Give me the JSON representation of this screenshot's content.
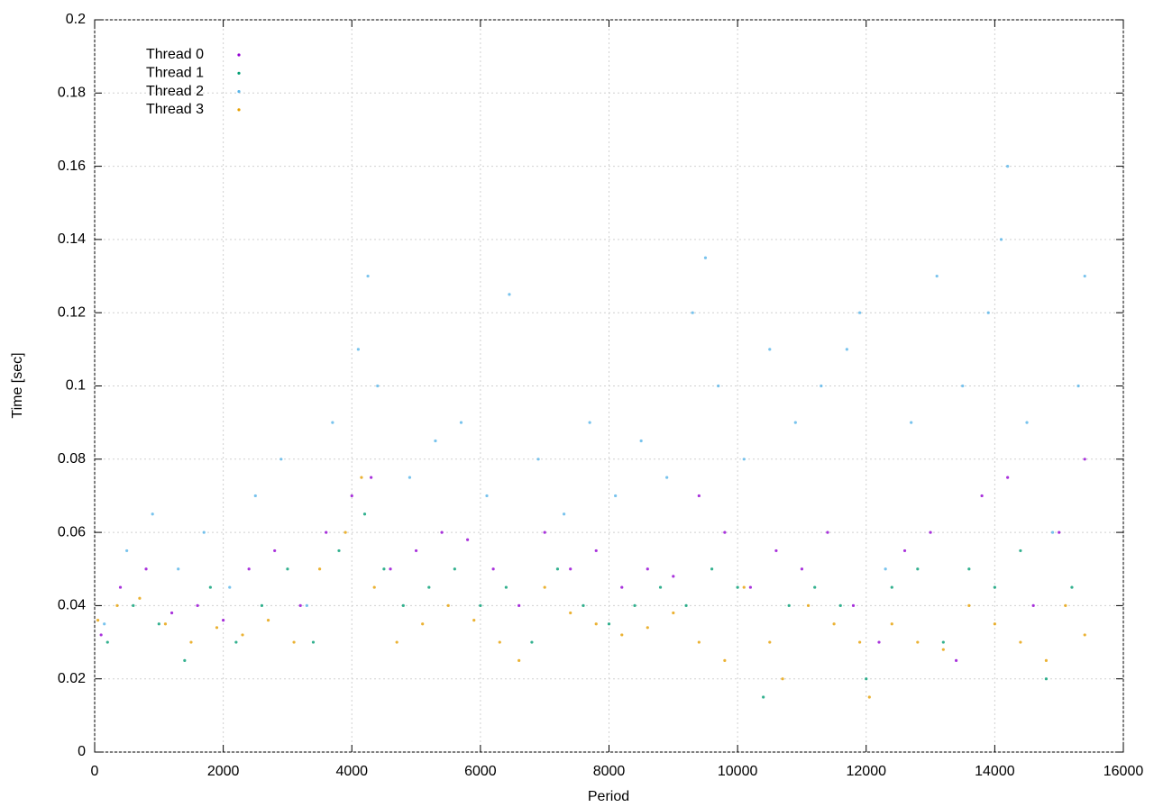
{
  "chart_data": {
    "type": "scatter",
    "xlabel": "Period",
    "ylabel": "Time [sec]",
    "xlim": [
      0,
      16000
    ],
    "ylim": [
      0,
      0.2
    ],
    "xticks": [
      0,
      2000,
      4000,
      6000,
      8000,
      10000,
      12000,
      14000,
      16000
    ],
    "yticks": [
      0,
      0.02,
      0.04,
      0.06,
      0.08,
      0.1,
      0.12,
      0.14,
      0.16,
      0.18,
      0.2
    ],
    "grid": true,
    "legend": "upper-left",
    "series": [
      {
        "name": "Thread 0",
        "color": "#9400d3",
        "x": [
          100,
          400,
          800,
          1200,
          1600,
          2000,
          2400,
          2800,
          3200,
          3600,
          4000,
          4300,
          4600,
          5000,
          5400,
          5800,
          6200,
          6600,
          7000,
          7400,
          7800,
          8200,
          8600,
          9000,
          9400,
          9800,
          10200,
          10600,
          11000,
          11400,
          11800,
          12200,
          12600,
          13000,
          13400,
          13800,
          14200,
          14600,
          15000,
          15400
        ],
        "values": [
          0.032,
          0.045,
          0.05,
          0.038,
          0.04,
          0.036,
          0.05,
          0.055,
          0.04,
          0.06,
          0.07,
          0.075,
          0.05,
          0.055,
          0.06,
          0.058,
          0.05,
          0.04,
          0.06,
          0.05,
          0.055,
          0.045,
          0.05,
          0.048,
          0.07,
          0.06,
          0.045,
          0.055,
          0.05,
          0.06,
          0.04,
          0.03,
          0.055,
          0.06,
          0.025,
          0.07,
          0.075,
          0.04,
          0.06,
          0.08
        ]
      },
      {
        "name": "Thread 1",
        "color": "#009e73",
        "x": [
          200,
          600,
          1000,
          1400,
          1800,
          2200,
          2600,
          3000,
          3400,
          3800,
          4200,
          4500,
          4800,
          5200,
          5600,
          6000,
          6400,
          6800,
          7200,
          7600,
          8000,
          8400,
          8800,
          9200,
          9600,
          10000,
          10400,
          10800,
          11200,
          11600,
          12000,
          12400,
          12800,
          13200,
          13600,
          14000,
          14400,
          14800,
          15200
        ],
        "values": [
          0.03,
          0.04,
          0.035,
          0.025,
          0.045,
          0.03,
          0.04,
          0.05,
          0.03,
          0.055,
          0.065,
          0.05,
          0.04,
          0.045,
          0.05,
          0.04,
          0.045,
          0.03,
          0.05,
          0.04,
          0.035,
          0.04,
          0.045,
          0.04,
          0.05,
          0.045,
          0.015,
          0.04,
          0.045,
          0.04,
          0.02,
          0.045,
          0.05,
          0.03,
          0.05,
          0.045,
          0.055,
          0.02,
          0.045
        ]
      },
      {
        "name": "Thread 2",
        "color": "#56b4e9",
        "x": [
          150,
          500,
          900,
          1300,
          1700,
          2100,
          2500,
          2900,
          3300,
          3700,
          4100,
          4250,
          4400,
          4900,
          5300,
          5700,
          6100,
          6450,
          6900,
          7300,
          7700,
          8100,
          8500,
          8900,
          9300,
          9500,
          9700,
          10100,
          10500,
          10900,
          11300,
          11700,
          11900,
          12300,
          12700,
          13100,
          13500,
          13900,
          14100,
          14200,
          14500,
          14900,
          15300,
          15400
        ],
        "values": [
          0.035,
          0.055,
          0.065,
          0.05,
          0.06,
          0.045,
          0.07,
          0.08,
          0.04,
          0.09,
          0.11,
          0.13,
          0.1,
          0.075,
          0.085,
          0.09,
          0.07,
          0.125,
          0.08,
          0.065,
          0.09,
          0.07,
          0.085,
          0.075,
          0.12,
          0.135,
          0.1,
          0.08,
          0.11,
          0.09,
          0.1,
          0.11,
          0.12,
          0.05,
          0.09,
          0.13,
          0.1,
          0.12,
          0.14,
          0.16,
          0.09,
          0.06,
          0.1,
          0.13
        ]
      },
      {
        "name": "Thread 3",
        "color": "#e69f00",
        "x": [
          50,
          350,
          700,
          1100,
          1500,
          1900,
          2300,
          2700,
          3100,
          3500,
          3900,
          4150,
          4350,
          4700,
          5100,
          5500,
          5900,
          6300,
          6600,
          7000,
          7400,
          7800,
          8200,
          8600,
          9000,
          9400,
          9800,
          10100,
          10500,
          10700,
          11100,
          11500,
          11900,
          12050,
          12400,
          12800,
          13200,
          13600,
          14000,
          14400,
          14800,
          15100,
          15400
        ],
        "values": [
          0.036,
          0.04,
          0.042,
          0.035,
          0.03,
          0.034,
          0.032,
          0.036,
          0.03,
          0.05,
          0.06,
          0.075,
          0.045,
          0.03,
          0.035,
          0.04,
          0.036,
          0.03,
          0.025,
          0.045,
          0.038,
          0.035,
          0.032,
          0.034,
          0.038,
          0.03,
          0.025,
          0.045,
          0.03,
          0.02,
          0.04,
          0.035,
          0.03,
          0.015,
          0.035,
          0.03,
          0.028,
          0.04,
          0.035,
          0.03,
          0.025,
          0.04,
          0.032
        ]
      }
    ]
  }
}
